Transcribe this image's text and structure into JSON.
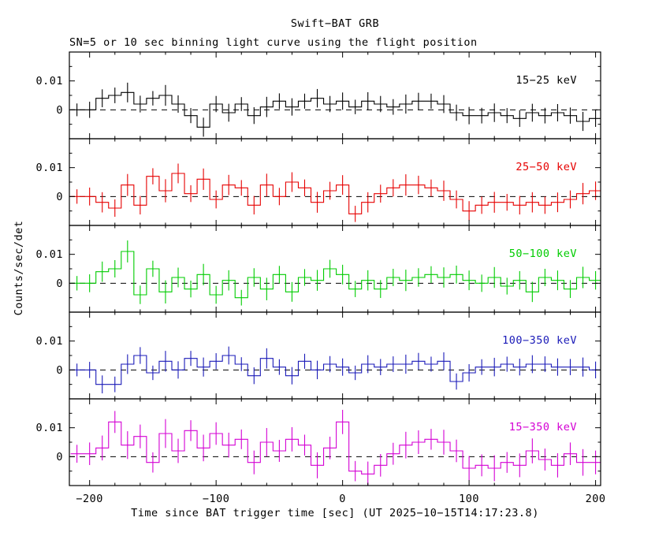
{
  "chart_data": {
    "type": "line",
    "subtype": "step-light-curve-with-error-bars",
    "title": "Swift−BAT GRB",
    "subtitle": "SN=5 or 10 sec binning light curve using the flight position",
    "xlabel": "Time since BAT trigger time [sec] (UT 2025−10−15T14:17:23.8)",
    "ylabel": "Counts/sec/det",
    "xlim": [
      -216,
      204
    ],
    "panel_ylim": [
      -0.01,
      0.02
    ],
    "x_ticks": [
      -200,
      -100,
      0,
      100,
      200
    ],
    "x_tick_labels": [
      "−200",
      "−100",
      "0",
      "100",
      "200"
    ],
    "x_minor_tick_step": 20,
    "y_ticks": [
      0,
      0.01
    ],
    "y_tick_labels": [
      "0",
      "0.01"
    ],
    "y_minor_ticks": [
      -0.005,
      0.005,
      0.015
    ],
    "bin_width_sec": 10,
    "grid": false,
    "legend_position": "inside-top-right-per-panel",
    "zero_line": {
      "style": "dashed",
      "color": "#000000"
    },
    "frame_color": "#000000",
    "background_color": "#ffffff",
    "bin_centers": [
      -210,
      -200,
      -190,
      -180,
      -170,
      -160,
      -150,
      -140,
      -130,
      -120,
      -110,
      -100,
      -90,
      -80,
      -70,
      -60,
      -50,
      -40,
      -30,
      -20,
      -10,
      0,
      10,
      20,
      30,
      40,
      50,
      60,
      70,
      80,
      90,
      100,
      110,
      120,
      130,
      140,
      150,
      160,
      170,
      180,
      190,
      200
    ],
    "panels": [
      {
        "label": "15−25 keV",
        "color": "#000000",
        "values": [
          0,
          0,
          0.004,
          0.005,
          0.006,
          0.002,
          0.004,
          0.005,
          0.002,
          -0.002,
          -0.006,
          0.002,
          -0.001,
          0.002,
          -0.002,
          0.001,
          0.003,
          0.001,
          0.003,
          0.004,
          0.002,
          0.003,
          0.001,
          0.003,
          0.002,
          0.001,
          0.002,
          0.003,
          0.003,
          0.002,
          -0.001,
          -0.002,
          -0.002,
          -0.001,
          -0.002,
          -0.003,
          -0.001,
          -0.002,
          -0.001,
          -0.002,
          -0.004,
          -0.003
        ],
        "errors": [
          0.0022,
          0.0028,
          0.0031,
          0.0027,
          0.0034,
          0.0029,
          0.0025,
          0.0036,
          0.003,
          0.0026,
          0.0033,
          0.0028,
          0.0031,
          0.0024,
          0.0029,
          0.0035,
          0.0027,
          0.003,
          0.0026,
          0.0032,
          0.0028,
          0.003,
          0.0025,
          0.0031,
          0.0028,
          0.0027,
          0.0033,
          0.0029,
          0.0026,
          0.0031,
          0.0028,
          0.003,
          0.0027,
          0.0032,
          0.0026,
          0.0029,
          0.0031,
          0.0027,
          0.003,
          0.0028,
          0.0033,
          0.0029
        ]
      },
      {
        "label": "25−50 keV",
        "color": "#e60000",
        "values": [
          0,
          0,
          -0.002,
          -0.004,
          0.004,
          -0.003,
          0.007,
          0.002,
          0.008,
          0.001,
          0.006,
          -0.001,
          0.004,
          0.003,
          -0.003,
          0.004,
          0,
          0.005,
          0.003,
          -0.002,
          0.002,
          0.004,
          -0.006,
          -0.002,
          0.001,
          0.003,
          0.004,
          0.004,
          0.003,
          0.002,
          -0.001,
          -0.005,
          -0.003,
          -0.002,
          -0.002,
          -0.003,
          -0.002,
          -0.003,
          -0.002,
          -0.001,
          0.001,
          0.002
        ],
        "errors": [
          0.0025,
          0.0031,
          0.0035,
          0.003,
          0.0038,
          0.0032,
          0.0028,
          0.004,
          0.0034,
          0.0029,
          0.0037,
          0.0031,
          0.0035,
          0.0027,
          0.0032,
          0.0039,
          0.003,
          0.0034,
          0.0029,
          0.0036,
          0.0031,
          0.0034,
          0.0028,
          0.0035,
          0.0031,
          0.003,
          0.0037,
          0.0032,
          0.0029,
          0.0035,
          0.0031,
          0.0034,
          0.003,
          0.0036,
          0.0029,
          0.0032,
          0.0035,
          0.003,
          0.0034,
          0.0031,
          0.0037,
          0.0032
        ]
      },
      {
        "label": "50−100 keV",
        "color": "#00cc00",
        "values": [
          0,
          0,
          0.004,
          0.005,
          0.011,
          -0.004,
          0.005,
          -0.003,
          0.002,
          -0.002,
          0.003,
          -0.004,
          0.001,
          -0.005,
          0.002,
          -0.002,
          0.003,
          -0.003,
          0.002,
          0.001,
          0.005,
          0.003,
          -0.002,
          0.001,
          -0.002,
          0.002,
          0.001,
          0.002,
          0.003,
          0.002,
          0.003,
          0.001,
          0,
          0.002,
          -0.001,
          0.001,
          -0.003,
          0.002,
          0.001,
          -0.002,
          0.002,
          0.001
        ],
        "errors": [
          0.0025,
          0.0031,
          0.0035,
          0.003,
          0.0038,
          0.0032,
          0.0028,
          0.004,
          0.0034,
          0.0029,
          0.0037,
          0.0031,
          0.0035,
          0.0027,
          0.0032,
          0.0039,
          0.003,
          0.0034,
          0.0029,
          0.0036,
          0.0031,
          0.0034,
          0.0028,
          0.0035,
          0.0031,
          0.003,
          0.0037,
          0.0032,
          0.0029,
          0.0035,
          0.0031,
          0.0034,
          0.003,
          0.0036,
          0.0029,
          0.0032,
          0.0035,
          0.003,
          0.0034,
          0.0031,
          0.0037,
          0.0032
        ]
      },
      {
        "label": "100−350 keV",
        "color": "#1a1ab8",
        "values": [
          0,
          0,
          -0.005,
          -0.005,
          0.002,
          0.005,
          -0.001,
          0.003,
          0,
          0.004,
          0.001,
          0.003,
          0.005,
          0.002,
          -0.002,
          0.004,
          0.001,
          -0.002,
          0.003,
          0,
          0.002,
          0.001,
          -0.001,
          0.002,
          0.001,
          0.002,
          0.002,
          0.003,
          0.002,
          0.003,
          -0.004,
          -0.001,
          0.001,
          0.001,
          0.002,
          0.001,
          0.002,
          0.002,
          0.001,
          0.001,
          0.001,
          0
        ],
        "errors": [
          0.0022,
          0.0028,
          0.0031,
          0.0027,
          0.0034,
          0.0029,
          0.0025,
          0.0036,
          0.003,
          0.0026,
          0.0033,
          0.0028,
          0.0031,
          0.0024,
          0.0029,
          0.0035,
          0.0027,
          0.003,
          0.0026,
          0.0032,
          0.0028,
          0.003,
          0.0025,
          0.0031,
          0.0028,
          0.0027,
          0.0033,
          0.0029,
          0.0026,
          0.0031,
          0.0028,
          0.003,
          0.0027,
          0.0032,
          0.0026,
          0.0029,
          0.0031,
          0.0027,
          0.003,
          0.0028,
          0.0033,
          0.0029
        ]
      },
      {
        "label": "15−350 keV",
        "color": "#d400d4",
        "values": [
          0.001,
          0.001,
          0.003,
          0.012,
          0.004,
          0.007,
          -0.002,
          0.008,
          0.002,
          0.009,
          0.003,
          0.008,
          0.004,
          0.006,
          -0.002,
          0.005,
          0.002,
          0.006,
          0.004,
          -0.003,
          0.003,
          0.012,
          -0.005,
          -0.006,
          -0.003,
          0.001,
          0.004,
          0.005,
          0.006,
          0.005,
          0.002,
          -0.004,
          -0.003,
          -0.004,
          -0.002,
          -0.003,
          0.002,
          -0.001,
          -0.003,
          0.001,
          -0.002,
          -0.002
        ],
        "errors": [
          0.0031,
          0.0039,
          0.0043,
          0.0038,
          0.0048,
          0.0041,
          0.0035,
          0.005,
          0.0042,
          0.0036,
          0.0046,
          0.0039,
          0.0043,
          0.0034,
          0.0041,
          0.0049,
          0.0038,
          0.0042,
          0.0036,
          0.0045,
          0.0039,
          0.0042,
          0.0035,
          0.0043,
          0.0039,
          0.0038,
          0.0046,
          0.0041,
          0.0036,
          0.0043,
          0.0039,
          0.0042,
          0.0038,
          0.0045,
          0.0036,
          0.0041,
          0.0043,
          0.0038,
          0.0042,
          0.0039,
          0.0046,
          0.0041
        ]
      }
    ]
  }
}
